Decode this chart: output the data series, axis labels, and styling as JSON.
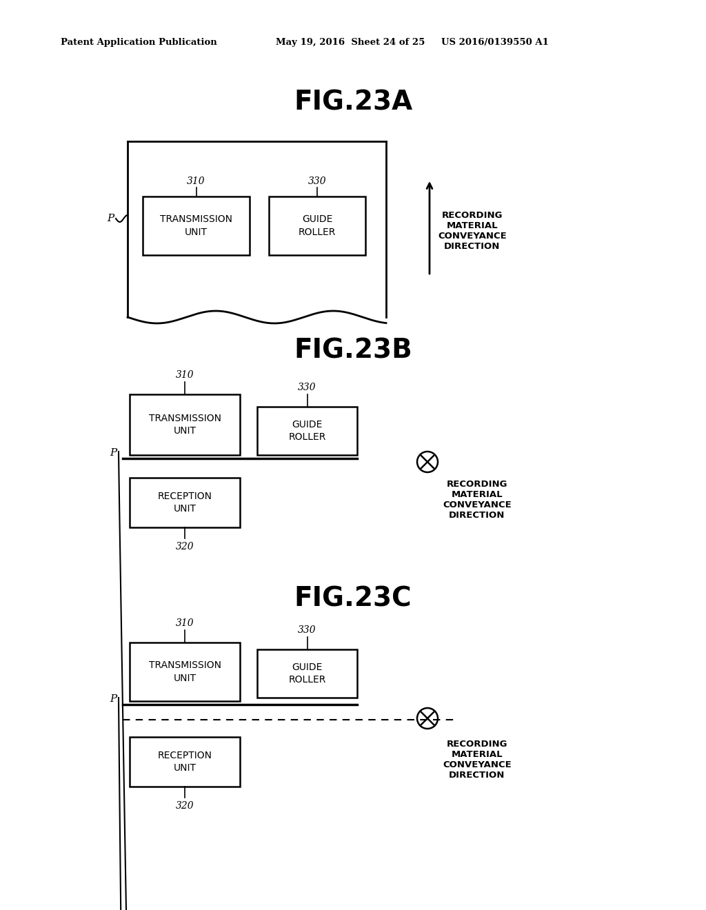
{
  "background_color": "#ffffff",
  "header_left": "Patent Application Publication",
  "header_mid": "May 19, 2016  Sheet 24 of 25",
  "header_right": "US 2016/0139550 A1",
  "fig23a_title": "FIG.23A",
  "fig23b_title": "FIG.23B",
  "fig23c_title": "FIG.23C",
  "recording_direction_text": "RECORDING\nMATERIAL\nCONVEYANCE\nDIRECTION",
  "label_310": "310",
  "label_320": "320",
  "label_330": "330",
  "label_P": "P",
  "tx_unit_text": "TRANSMISSION\nUNIT",
  "guide_roller_text": "GUIDE\nROLLER",
  "reception_unit_text": "RECEPTION\nUNIT"
}
